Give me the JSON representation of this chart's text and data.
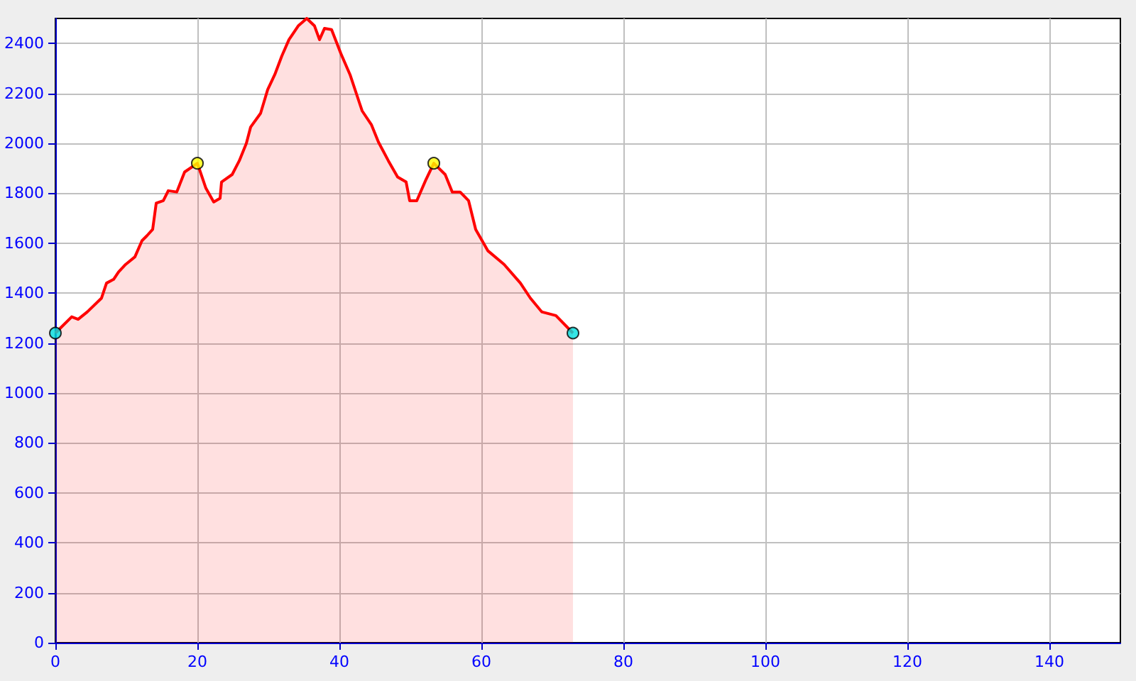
{
  "chart_data": {
    "type": "area",
    "xlim": [
      0,
      150
    ],
    "xticks": [
      0,
      20,
      40,
      60,
      80,
      100,
      120,
      140
    ],
    "ylim": [
      0,
      2500
    ],
    "yticks": [
      0,
      200,
      400,
      600,
      800,
      1000,
      1200,
      1400,
      1600,
      1800,
      2000,
      2200,
      2400
    ],
    "grid": true,
    "series": [
      {
        "color": "#ff0000",
        "marker": "none",
        "x": [
          0,
          2.3,
          3.2,
          4.5,
          6.5,
          7.2,
          8.2,
          8.9,
          9.9,
          11.2,
          12.2,
          12.9,
          13.7,
          14.2,
          15.2,
          15.9,
          17.1,
          18.2,
          20,
          21.2,
          22.3,
          23.2,
          23.4,
          24.9,
          25.9,
          26.9,
          27.5,
          28.9,
          29.9,
          30.9,
          31.9,
          32.9,
          34.2,
          35.4,
          36.5,
          37.2,
          37.9,
          38.9,
          40.2,
          41.5,
          43.2,
          44.5,
          45.5,
          46.9,
          48.2,
          49.4,
          49.9,
          50.9,
          52.2,
          53.3,
          54.9,
          55.9,
          57,
          58.2,
          59.2,
          60.9,
          63.2,
          65.5,
          66.9,
          68.5,
          70.5,
          72.9
        ],
        "values": [
          1240,
          1305,
          1295,
          1325,
          1380,
          1440,
          1455,
          1485,
          1515,
          1545,
          1610,
          1630,
          1655,
          1760,
          1770,
          1810,
          1805,
          1885,
          1920,
          1820,
          1765,
          1780,
          1845,
          1875,
          1930,
          2000,
          2065,
          2120,
          2215,
          2275,
          2350,
          2415,
          2470,
          2500,
          2470,
          2415,
          2460,
          2455,
          2360,
          2275,
          2130,
          2075,
          2005,
          1930,
          1865,
          1845,
          1770,
          1770,
          1855,
          1920,
          1875,
          1805,
          1805,
          1770,
          1655,
          1570,
          1515,
          1440,
          1380,
          1325,
          1310,
          1240
        ]
      },
      {
        "type": "scatter",
        "marker": "circle",
        "x": [
          0,
          20,
          53.3,
          72.9
        ],
        "values": [
          1240,
          1920,
          1920,
          1240
        ],
        "colors": [
          "#00e0e0",
          "#ffff00",
          "#ffff00",
          "#00e0e0"
        ]
      }
    ]
  }
}
